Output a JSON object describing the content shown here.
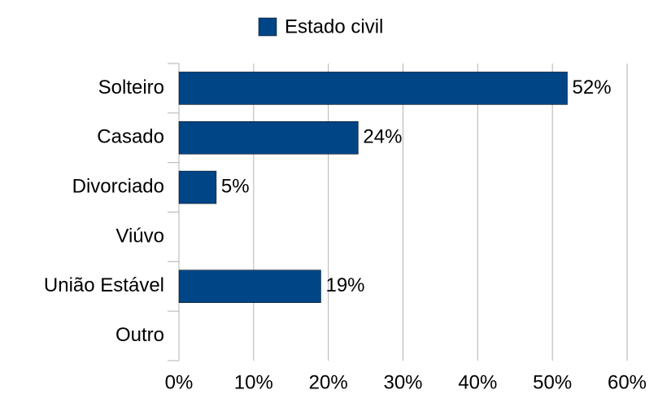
{
  "chart_data": {
    "type": "hbar",
    "categories": [
      "Solteiro",
      "Casado",
      "Divorciado",
      "Viúvo",
      "União Estável",
      "Outro"
    ],
    "series": [
      {
        "name": "Estado civil",
        "color": "#004586",
        "values": [
          52,
          24,
          5,
          0,
          19,
          0
        ],
        "value_labels": [
          "52%",
          "24%",
          "5%",
          null,
          "19%",
          null
        ]
      }
    ],
    "xlim": [
      0,
      60
    ],
    "xticks": [
      {
        "value": 0,
        "label": "0%"
      },
      {
        "value": 10,
        "label": "10%"
      },
      {
        "value": 20,
        "label": "20%"
      },
      {
        "value": 30,
        "label": "30%"
      },
      {
        "value": 40,
        "label": "40%"
      },
      {
        "value": 50,
        "label": "50%"
      },
      {
        "value": 60,
        "label": "60%"
      }
    ],
    "grid": true,
    "legend": "top"
  }
}
